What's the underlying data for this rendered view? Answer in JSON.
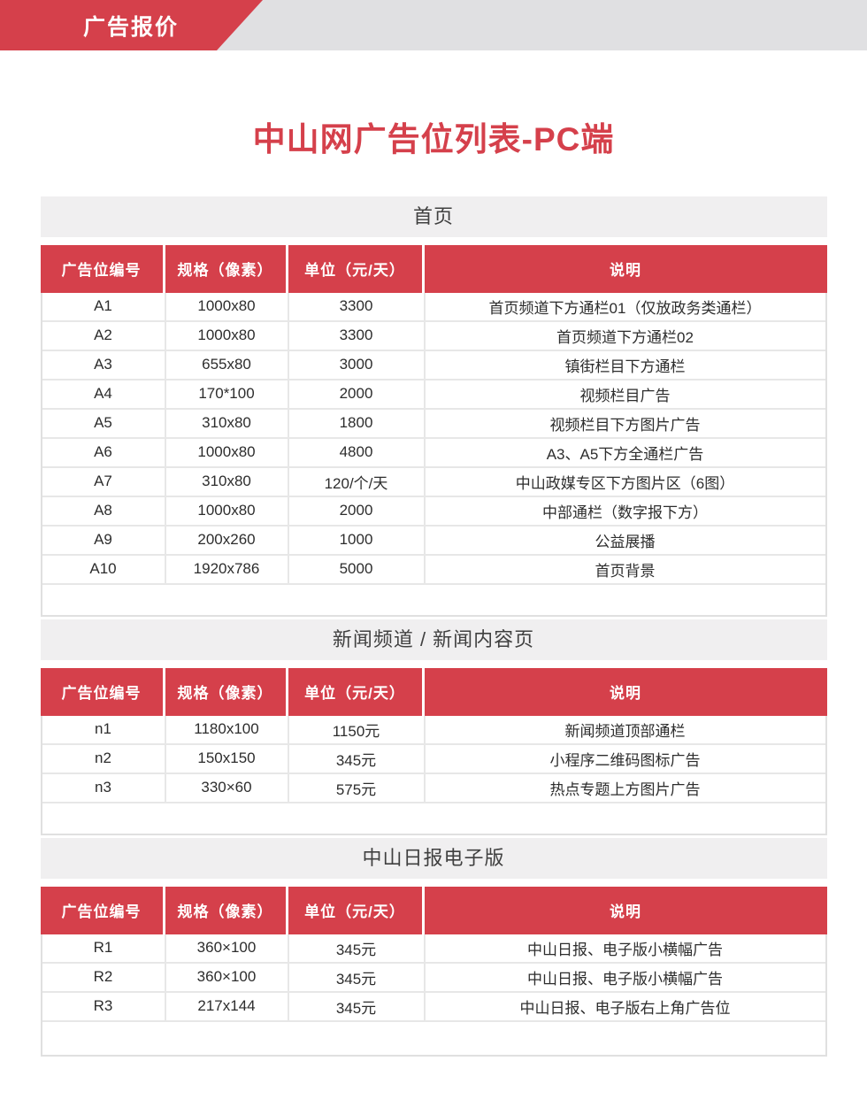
{
  "banner": {
    "label": "广告报价"
  },
  "title": "中山网广告位列表-PC端",
  "table_columns": [
    "广告位编号",
    "规格（像素）",
    "单位（元/天）",
    "说明"
  ],
  "sections": [
    {
      "title": "首页",
      "rows": [
        {
          "code": "A1",
          "spec": "1000x80",
          "unit": "3300",
          "desc": "首页频道下方通栏01（仅放政务类通栏）"
        },
        {
          "code": "A2",
          "spec": "1000x80",
          "unit": "3300",
          "desc": "首页频道下方通栏02"
        },
        {
          "code": "A3",
          "spec": "655x80",
          "unit": "3000",
          "desc": "镇街栏目下方通栏"
        },
        {
          "code": "A4",
          "spec": "170*100",
          "unit": "2000",
          "desc": "视频栏目广告"
        },
        {
          "code": "A5",
          "spec": "310x80",
          "unit": "1800",
          "desc": "视频栏目下方图片广告"
        },
        {
          "code": "A6",
          "spec": "1000x80",
          "unit": "4800",
          "desc": "A3、A5下方全通栏广告"
        },
        {
          "code": "A7",
          "spec": "310x80",
          "unit": "120/个/天",
          "desc": "中山政媒专区下方图片区（6图）"
        },
        {
          "code": "A8",
          "spec": "1000x80",
          "unit": "2000",
          "desc": "中部通栏（数字报下方）"
        },
        {
          "code": "A9",
          "spec": "200x260",
          "unit": "1000",
          "desc": "公益展播"
        },
        {
          "code": "A10",
          "spec": "1920x786",
          "unit": "5000",
          "desc": "首页背景"
        }
      ]
    },
    {
      "title": "新闻频道 / 新闻内容页",
      "rows": [
        {
          "code": "n1",
          "spec": "1180x100",
          "unit": "1150元",
          "desc": "新闻频道顶部通栏"
        },
        {
          "code": "n2",
          "spec": "150x150",
          "unit": "345元",
          "desc": "小程序二维码图标广告"
        },
        {
          "code": "n3",
          "spec": "330×60",
          "unit": "575元",
          "desc": "热点专题上方图片广告"
        }
      ]
    },
    {
      "title": "中山日报电子版",
      "rows": [
        {
          "code": "R1",
          "spec": "360×100",
          "unit": "345元",
          "desc": "中山日报、电子版小横幅广告"
        },
        {
          "code": "R2",
          "spec": "360×100",
          "unit": "345元",
          "desc": "中山日报、电子版小横幅广告"
        },
        {
          "code": "R3",
          "spec": "217x144",
          "unit": "345元",
          "desc": "中山日报、电子版右上角广告位"
        }
      ]
    }
  ],
  "colors": {
    "accent_red": "#d5404b",
    "banner_gray": "#e0e0e2",
    "section_band": "#f0eff0",
    "row_border": "#e7e7e7",
    "outer_border": "#e0e0e0",
    "text_dark": "#2d2d2d",
    "band_text": "#404040"
  }
}
